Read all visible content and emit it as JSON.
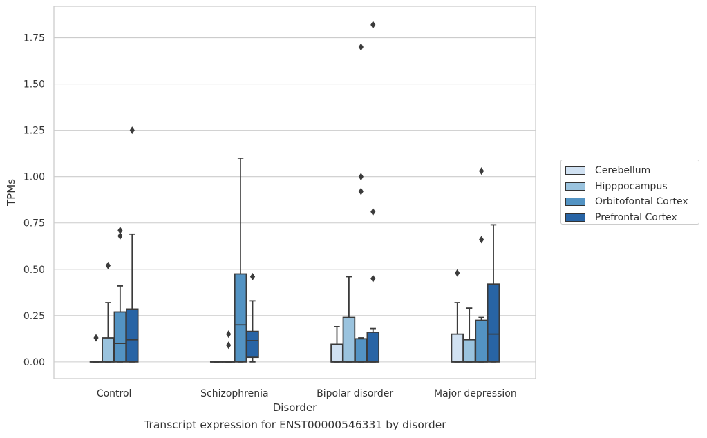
{
  "chart_data": {
    "type": "box",
    "title": "Transcript expression for ENST00000546331 by disorder",
    "xlabel": "Disorder",
    "ylabel": "TPMs",
    "ylim": [
      -0.09,
      1.92
    ],
    "yticks": [
      "0.00",
      "0.25",
      "0.50",
      "0.75",
      "1.00",
      "1.25",
      "1.50",
      "1.75"
    ],
    "grid": true,
    "legend_placement": "right",
    "categories": [
      "Control",
      "Schizophrenia",
      "Bipolar disorder",
      "Major depression"
    ],
    "series": [
      {
        "name": "Cerebellum",
        "color": "#d0e1f2",
        "boxes": [
          {
            "q1": 0.0,
            "median": 0.0,
            "q3": 0.0,
            "whisker_low": 0.0,
            "whisker_high": 0.0,
            "outliers": [
              0.13
            ]
          },
          {
            "q1": 0.0,
            "median": 0.0,
            "q3": 0.0,
            "whisker_low": 0.0,
            "whisker_high": 0.0,
            "outliers": []
          },
          {
            "q1": 0.0,
            "median": 0.0,
            "q3": 0.095,
            "whisker_low": 0.0,
            "whisker_high": 0.19,
            "outliers": []
          },
          {
            "q1": 0.0,
            "median": 0.0,
            "q3": 0.15,
            "whisker_low": 0.0,
            "whisker_high": 0.32,
            "outliers": [
              0.48
            ]
          }
        ]
      },
      {
        "name": "Hipppocampus",
        "color": "#9ac3de",
        "boxes": [
          {
            "q1": 0.0,
            "median": 0.0,
            "q3": 0.13,
            "whisker_low": 0.0,
            "whisker_high": 0.32,
            "outliers": [
              0.52
            ]
          },
          {
            "q1": 0.0,
            "median": 0.0,
            "q3": 0.0,
            "whisker_low": 0.0,
            "whisker_high": 0.0,
            "outliers": [
              0.09,
              0.15
            ]
          },
          {
            "q1": 0.0,
            "median": 0.0,
            "q3": 0.24,
            "whisker_low": 0.0,
            "whisker_high": 0.46,
            "outliers": []
          },
          {
            "q1": 0.0,
            "median": 0.0,
            "q3": 0.12,
            "whisker_low": 0.0,
            "whisker_high": 0.29,
            "outliers": []
          }
        ]
      },
      {
        "name": "Orbitofontal Cortex",
        "color": "#5393c3",
        "boxes": [
          {
            "q1": 0.0,
            "median": 0.1,
            "q3": 0.27,
            "whisker_low": 0.0,
            "whisker_high": 0.41,
            "outliers": [
              0.68,
              0.71
            ]
          },
          {
            "q1": 0.0,
            "median": 0.2,
            "q3": 0.475,
            "whisker_low": 0.0,
            "whisker_high": 1.1,
            "outliers": []
          },
          {
            "q1": 0.0,
            "median": 0.0,
            "q3": 0.125,
            "whisker_low": 0.0,
            "whisker_high": 0.13,
            "outliers": [
              0.92,
              1.0,
              1.7
            ]
          },
          {
            "q1": 0.0,
            "median": 0.0,
            "q3": 0.225,
            "whisker_low": 0.0,
            "whisker_high": 0.24,
            "outliers": [
              0.66,
              1.03
            ]
          }
        ]
      },
      {
        "name": "Prefrontal Cortex",
        "color": "#2864a5",
        "boxes": [
          {
            "q1": 0.0,
            "median": 0.12,
            "q3": 0.285,
            "whisker_low": 0.0,
            "whisker_high": 0.69,
            "outliers": [
              1.25
            ]
          },
          {
            "q1": 0.025,
            "median": 0.115,
            "q3": 0.165,
            "whisker_low": 0.0,
            "whisker_high": 0.33,
            "outliers": [
              0.46
            ]
          },
          {
            "q1": 0.0,
            "median": 0.0,
            "q3": 0.16,
            "whisker_low": 0.0,
            "whisker_high": 0.18,
            "outliers": [
              0.45,
              0.81,
              1.82
            ]
          },
          {
            "q1": 0.0,
            "median": 0.15,
            "q3": 0.42,
            "whisker_low": 0.0,
            "whisker_high": 0.74,
            "outliers": []
          }
        ]
      }
    ]
  }
}
